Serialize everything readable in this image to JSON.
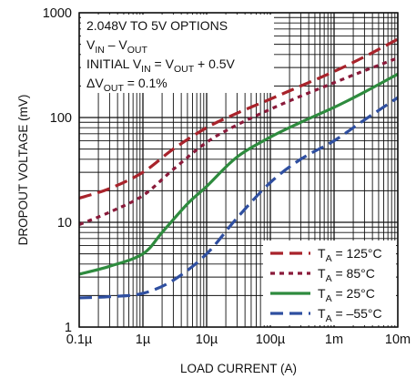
{
  "chart_data": {
    "type": "line",
    "xlabel": "LOAD CURRENT (A)",
    "ylabel": "DROPOUT VOLTAGE (mV)",
    "x_scale": "log",
    "y_scale": "log",
    "xlim": [
      1e-07,
      0.01
    ],
    "ylim": [
      1,
      1000
    ],
    "grid": true,
    "x_ticks": [
      {
        "value": 1e-07,
        "label": "0.1µ"
      },
      {
        "value": 1e-06,
        "label": "1µ"
      },
      {
        "value": 1e-05,
        "label": "10µ"
      },
      {
        "value": 0.0001,
        "label": "100µ"
      },
      {
        "value": 0.001,
        "label": "1m"
      },
      {
        "value": 0.01,
        "label": "10m"
      }
    ],
    "y_ticks": [
      {
        "value": 1,
        "label": "1"
      },
      {
        "value": 10,
        "label": "10"
      },
      {
        "value": 100,
        "label": "100"
      },
      {
        "value": 1000,
        "label": "1000"
      }
    ],
    "annotation": {
      "line1": "2.048V TO 5V OPTIONS",
      "line2_main": "V",
      "line2_sub1": "IN",
      "line2_mid": " – V",
      "line2_sub2": "OUT",
      "line3_a": "INITIAL V",
      "line3_sub1": "IN",
      "line3_b": " = V",
      "line3_sub2": "OUT",
      "line3_c": " + 0.5V",
      "line4_a": "ΔV",
      "line4_sub": "OUT",
      "line4_b": " = 0.1%"
    },
    "legend_position": "bottom-right",
    "series": [
      {
        "name_main": "T",
        "name_sub": "A",
        "name_rest": " = 125°C",
        "color": "#a8232b",
        "dash": "dashed",
        "x": [
          1e-07,
          3e-07,
          1e-06,
          3e-06,
          1e-05,
          3e-05,
          0.0001,
          0.0003,
          0.001,
          0.003,
          0.01
        ],
        "y": [
          17,
          21,
          30,
          50,
          80,
          110,
          150,
          200,
          275,
          380,
          560
        ]
      },
      {
        "name_main": "T",
        "name_sub": "A",
        "name_rest": " = 85°C",
        "color": "#8a1a3a",
        "dash": "dotted",
        "x": [
          1e-07,
          3e-07,
          1e-06,
          3e-06,
          1e-05,
          3e-05,
          0.0001,
          0.0003,
          0.001,
          0.003,
          0.01
        ],
        "y": [
          9.5,
          12.5,
          18,
          32,
          58,
          85,
          120,
          160,
          215,
          280,
          370
        ]
      },
      {
        "name_main": "T",
        "name_sub": "A",
        "name_rest": " = 25°C",
        "color": "#2e8b3e",
        "dash": "solid",
        "x": [
          1e-07,
          3e-07,
          1e-06,
          2e-06,
          5e-06,
          1e-05,
          3e-05,
          0.0001,
          0.0003,
          0.001,
          0.003,
          0.01
        ],
        "y": [
          3.2,
          3.8,
          5,
          8,
          15,
          22,
          42,
          65,
          90,
          125,
          175,
          260
        ]
      },
      {
        "name_main": "T",
        "name_sub": "A",
        "name_rest": " = –55°C",
        "color": "#2f4fa0",
        "dash": "dashed",
        "x": [
          1e-07,
          3e-07,
          1e-06,
          3e-06,
          1e-05,
          3e-05,
          0.0001,
          0.0003,
          0.001,
          0.003,
          0.01
        ],
        "y": [
          1.9,
          1.95,
          2.1,
          2.8,
          5,
          11,
          24,
          40,
          60,
          95,
          155
        ]
      }
    ]
  }
}
